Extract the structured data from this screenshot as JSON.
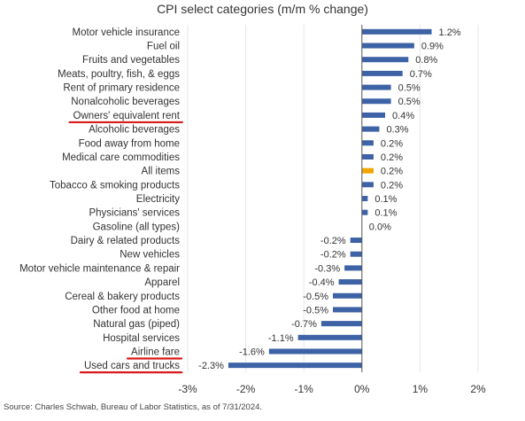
{
  "chart_data": {
    "type": "bar",
    "orientation": "horizontal",
    "title": "CPI select categories (m/m % change)",
    "categories": [
      "Motor vehicle insurance",
      "Fuel oil",
      "Fruits and vegetables",
      "Meats, poultry, fish, & eggs",
      "Rent of primary residence",
      "Nonalcoholic beverages",
      "Owners' equivalent rent",
      "Alcoholic beverages",
      "Food away from home",
      "Medical care commodities",
      "All items",
      "Tobacco & smoking products",
      "Electricity",
      "Physicians' services",
      "Gasoline (all types)",
      "Dairy & related products",
      "New vehicles",
      "Motor vehicle maintenance & repair",
      "Apparel",
      "Cereal & bakery products",
      "Other food at home",
      "Natural gas (piped)",
      "Hospital services",
      "Airline fare",
      "Used cars and trucks"
    ],
    "values": [
      1.2,
      0.9,
      0.8,
      0.7,
      0.5,
      0.5,
      0.4,
      0.3,
      0.2,
      0.2,
      0.2,
      0.2,
      0.1,
      0.1,
      0.0,
      -0.2,
      -0.2,
      -0.3,
      -0.4,
      -0.5,
      -0.5,
      -0.7,
      -1.1,
      -1.6,
      -2.3
    ],
    "value_labels": [
      "1.2%",
      "0.9%",
      "0.8%",
      "0.7%",
      "0.5%",
      "0.5%",
      "0.4%",
      "0.3%",
      "0.2%",
      "0.2%",
      "0.2%",
      "0.2%",
      "0.1%",
      "0.1%",
      "0.0%",
      "-0.2%",
      "-0.2%",
      "-0.3%",
      "-0.4%",
      "-0.5%",
      "-0.5%",
      "-0.7%",
      "-1.1%",
      "-1.6%",
      "-2.3%"
    ],
    "highlight_index": 10,
    "underlined_categories": [
      "Owners' equivalent rent",
      "Airline fare",
      "Used cars and trucks"
    ],
    "xlim": [
      -3,
      2
    ],
    "xticks": [
      -3,
      -2,
      -1,
      0,
      1,
      2
    ],
    "xtick_labels": [
      "-3%",
      "-2%",
      "-1%",
      "0%",
      "1%",
      "2%"
    ],
    "grid": "vertical",
    "xlabel": "",
    "ylabel": ""
  },
  "colors": {
    "bar": "#3d62a6",
    "highlight": "#f0a500",
    "underline": "#d91a1a",
    "grid": "#e6e6e6",
    "axis": "#555555"
  },
  "source": "Source: Charles Schwab, Bureau of Labor Statistics, as of 7/31/2024."
}
